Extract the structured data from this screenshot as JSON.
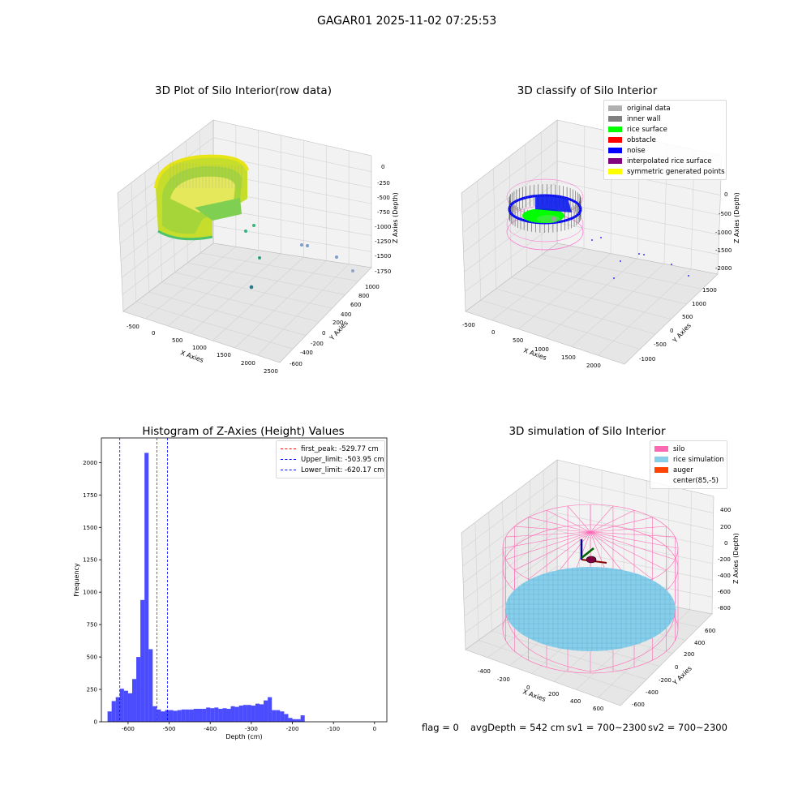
{
  "suptitle": "GAGAR01 2025-11-02 07:25:53",
  "footer": {
    "flag": "flag = 0",
    "avgDepth": "avgDepth = 542 cm",
    "sv1": "sv1 = 700~2300",
    "sv2": "sv2 = 700~2300"
  },
  "chart_data": [
    {
      "type": "scatter",
      "title": "3D Plot of Silo Interior(row data)",
      "xlabel": "X Axies",
      "ylabel": "Y Axies",
      "zlabel": "Z Axies (Depth)",
      "x_ticks": [
        "-500",
        "0",
        "500",
        "1000",
        "1500",
        "2000",
        "2500"
      ],
      "y_ticks": [
        "-600",
        "-400",
        "-200",
        "0",
        "200",
        "400",
        "600",
        "800",
        "1000"
      ],
      "z_ticks": [
        "0",
        "-250",
        "-500",
        "-750",
        "-1000",
        "-1250",
        "-1500",
        "-1750"
      ],
      "colormap": "viridis",
      "outlier_points": [
        {
          "x": 1800,
          "y": 0,
          "z": -1150
        },
        {
          "x": 1900,
          "y": 0,
          "z": -1150
        },
        {
          "x": 2350,
          "y": 0,
          "z": -1350
        },
        {
          "x": 2500,
          "y": 0,
          "z": -1550
        },
        {
          "x": 900,
          "y": 0,
          "z": -1300
        },
        {
          "x": 700,
          "y": 0,
          "z": -1700
        },
        {
          "x": 1000,
          "y": 0,
          "z": -1100
        }
      ]
    },
    {
      "type": "scatter",
      "title": "3D classify of Silo Interior",
      "xlabel": "X Axies",
      "ylabel": "Y Axies",
      "zlabel": "Z Axies (Depth)",
      "x_ticks": [
        "-500",
        "0",
        "500",
        "1000",
        "1500",
        "2000"
      ],
      "y_ticks": [
        "-1000",
        "-500",
        "0",
        "500",
        "1000",
        "1500"
      ],
      "z_ticks": [
        "0",
        "-500",
        "-1000",
        "-1500",
        "-2000"
      ],
      "legend": [
        {
          "label": "original data",
          "color": "#b0b0b0"
        },
        {
          "label": "inner wall",
          "color": "#808080"
        },
        {
          "label": "rice surface",
          "color": "#00ff00"
        },
        {
          "label": "obstacle",
          "color": "#ff0000"
        },
        {
          "label": "noise",
          "color": "#0000ff"
        },
        {
          "label": "interpolated rice surface",
          "color": "#800080"
        },
        {
          "label": "symmetric generated points",
          "color": "#ffff00"
        }
      ]
    },
    {
      "type": "bar",
      "title": "Histogram of Z-Axies (Height) Values",
      "xlabel": "Depth (cm)",
      "ylabel": "Frequency",
      "xlim": [
        -665,
        30
      ],
      "ylim": [
        0,
        2190
      ],
      "x_ticks": [
        -600,
        -500,
        -400,
        -300,
        -200,
        -100,
        0
      ],
      "y_ticks": [
        0,
        250,
        500,
        750,
        1000,
        1250,
        1500,
        1750,
        2000
      ],
      "bin_start": -650,
      "bin_width": 10,
      "values": [
        80,
        160,
        190,
        255,
        240,
        220,
        330,
        500,
        940,
        2075,
        560,
        120,
        95,
        80,
        90,
        90,
        85,
        90,
        95,
        95,
        95,
        100,
        100,
        100,
        110,
        105,
        110,
        100,
        105,
        100,
        120,
        115,
        125,
        130,
        130,
        125,
        140,
        135,
        165,
        190,
        90,
        90,
        80,
        60,
        30,
        20,
        20,
        50
      ],
      "bar_color": "#0000ff",
      "lines": [
        {
          "label": "first_peak: -529.77 cm",
          "x": -529.77,
          "color": "#ff0000"
        },
        {
          "label": "Upper_limit: -503.95 cm",
          "x": -503.95,
          "color": "#0000ff"
        },
        {
          "label": "Lower_limit: -620.17 cm",
          "x": -620.17,
          "color": "#0000ff"
        }
      ]
    },
    {
      "type": "scatter",
      "title": "3D simulation of Silo Interior",
      "xlabel": "X Axies",
      "ylabel": "Y Axies",
      "zlabel": "Z Axies (Depth)",
      "x_ticks": [
        "-400",
        "-200",
        "0",
        "200",
        "400",
        "600"
      ],
      "y_ticks": [
        "-600",
        "-400",
        "-200",
        "0",
        "200",
        "400",
        "600"
      ],
      "z_ticks": [
        "400",
        "200",
        "0",
        "-200",
        "-400",
        "-600",
        "-800"
      ],
      "legend": [
        {
          "label": "silo",
          "color": "#ff69b4"
        },
        {
          "label": "rice simulation",
          "color": "#87ceeb"
        },
        {
          "label": "auger",
          "color": "#ff4500"
        },
        {
          "label": "center(85,-5)",
          "color": ""
        }
      ]
    }
  ]
}
